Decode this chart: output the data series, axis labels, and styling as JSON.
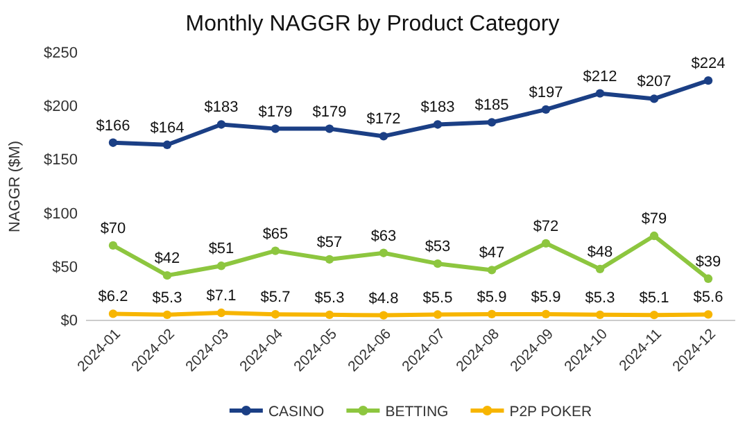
{
  "chart_data": {
    "type": "line",
    "title": "Monthly NAGGR by Product Category",
    "ylabel": "NAGGR ($M)",
    "categories": [
      "2024-01",
      "2024-02",
      "2024-03",
      "2024-04",
      "2024-05",
      "2024-06",
      "2024-07",
      "2024-08",
      "2024-09",
      "2024-10",
      "2024-11",
      "2024-12"
    ],
    "series": [
      {
        "name": "CASINO",
        "color": "#1b3f85",
        "values": [
          166,
          164,
          183,
          179,
          179,
          172,
          183,
          185,
          197,
          212,
          207,
          224
        ],
        "value_labels": [
          "$166",
          "$164",
          "$183",
          "$179",
          "$179",
          "$172",
          "$183",
          "$185",
          "$197",
          "$212",
          "$207",
          "$224"
        ]
      },
      {
        "name": "BETTING",
        "color": "#8dc63f",
        "values": [
          70,
          42,
          51,
          65,
          57,
          63,
          53,
          47,
          72,
          48,
          79,
          39
        ],
        "value_labels": [
          "$70",
          "$42",
          "$51",
          "$65",
          "$57",
          "$63",
          "$53",
          "$47",
          "$72",
          "$48",
          "$79",
          "$39"
        ]
      },
      {
        "name": "P2P POKER",
        "color": "#f7b500",
        "values": [
          6.2,
          5.3,
          7.1,
          5.7,
          5.3,
          4.8,
          5.5,
          5.9,
          5.9,
          5.3,
          5.1,
          5.6
        ],
        "value_labels": [
          "$6.2",
          "$5.3",
          "$7.1",
          "$5.7",
          "$5.3",
          "$4.8",
          "$5.5",
          "$5.9",
          "$5.9",
          "$5.3",
          "$5.1",
          "$5.6"
        ]
      }
    ],
    "ylim": [
      0,
      250
    ],
    "yticks": [
      {
        "value": 0,
        "label": "$0"
      },
      {
        "value": 50,
        "label": "$50"
      },
      {
        "value": 100,
        "label": "$100"
      },
      {
        "value": 150,
        "label": "$150"
      },
      {
        "value": 200,
        "label": "$200"
      },
      {
        "value": 250,
        "label": "$250"
      }
    ],
    "grid": false,
    "legend": "bottom",
    "marker": "circle",
    "line_style": "solid"
  }
}
